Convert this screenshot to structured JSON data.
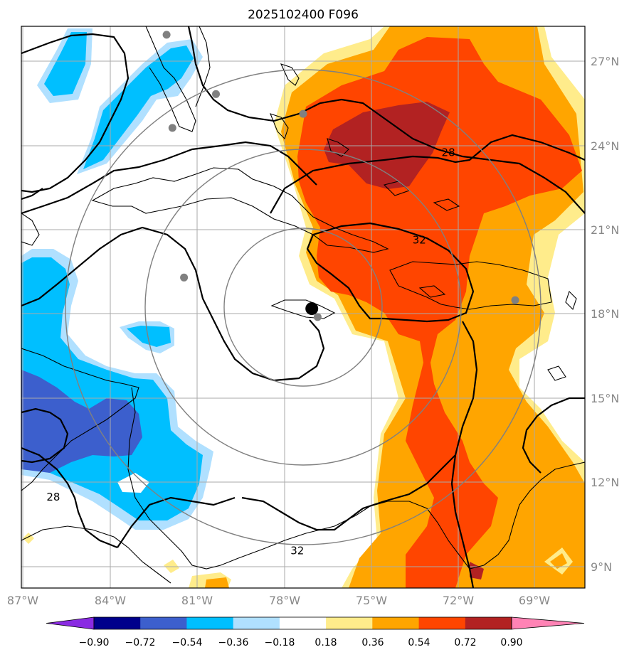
{
  "chart_data": {
    "type": "heatmap",
    "title": "2025102400 F096",
    "projection": "map",
    "x_ticks": [
      "87°W",
      "84°W",
      "81°W",
      "78°W",
      "75°W",
      "72°W",
      "69°W"
    ],
    "x_tick_values": [
      -87,
      -84,
      -81,
      -78,
      -75,
      -72,
      -69
    ],
    "y_ticks": [
      "27°N",
      "24°N",
      "21°N",
      "18°N",
      "15°N",
      "12°N",
      "9°N"
    ],
    "y_tick_values": [
      27,
      24,
      21,
      18,
      15,
      12,
      9
    ],
    "xlim": [
      -87.0,
      -67.6
    ],
    "ylim": [
      8.3,
      28.2
    ],
    "colorbar": {
      "extend": "both",
      "tick_labels": [
        "−0.90",
        "−0.72",
        "−0.54",
        "−0.36",
        "−0.18",
        "0.18",
        "0.36",
        "0.54",
        "0.72",
        "0.90"
      ],
      "levels": [
        -0.9,
        -0.72,
        -0.54,
        -0.36,
        -0.18,
        0.18,
        0.36,
        0.54,
        0.72,
        0.9
      ],
      "colors": [
        "#8a2be2",
        "#00008b",
        "#3c5fcd",
        "#00bfff",
        "#b0e0ff",
        "#ffffff",
        "#ffec8b",
        "#ffa500",
        "#ff4500",
        "#b22222",
        "#ff83b5"
      ]
    },
    "contour_labels": [
      {
        "text": "28",
        "lon": -72.3,
        "lat": 23.6
      },
      {
        "text": "32",
        "lon": -73.3,
        "lat": 20.5
      },
      {
        "text": "32",
        "lon": -77.5,
        "lat": 9.5
      },
      {
        "text": "28",
        "lon": -85.9,
        "lat": 11.4
      }
    ],
    "center": {
      "lon": -77.0,
      "lat": 18.2
    },
    "range_rings_deg": [
      2.75,
      5.5,
      8.25
    ],
    "stations": [
      {
        "lon": -82.0,
        "lat": 27.9
      },
      {
        "lon": -80.3,
        "lat": 25.8
      },
      {
        "lon": -81.8,
        "lat": 24.6
      },
      {
        "lon": -77.3,
        "lat": 25.1
      },
      {
        "lon": -81.4,
        "lat": 19.3
      },
      {
        "lon": -76.8,
        "lat": 17.9
      },
      {
        "lon": -70.0,
        "lat": 18.5
      }
    ]
  }
}
